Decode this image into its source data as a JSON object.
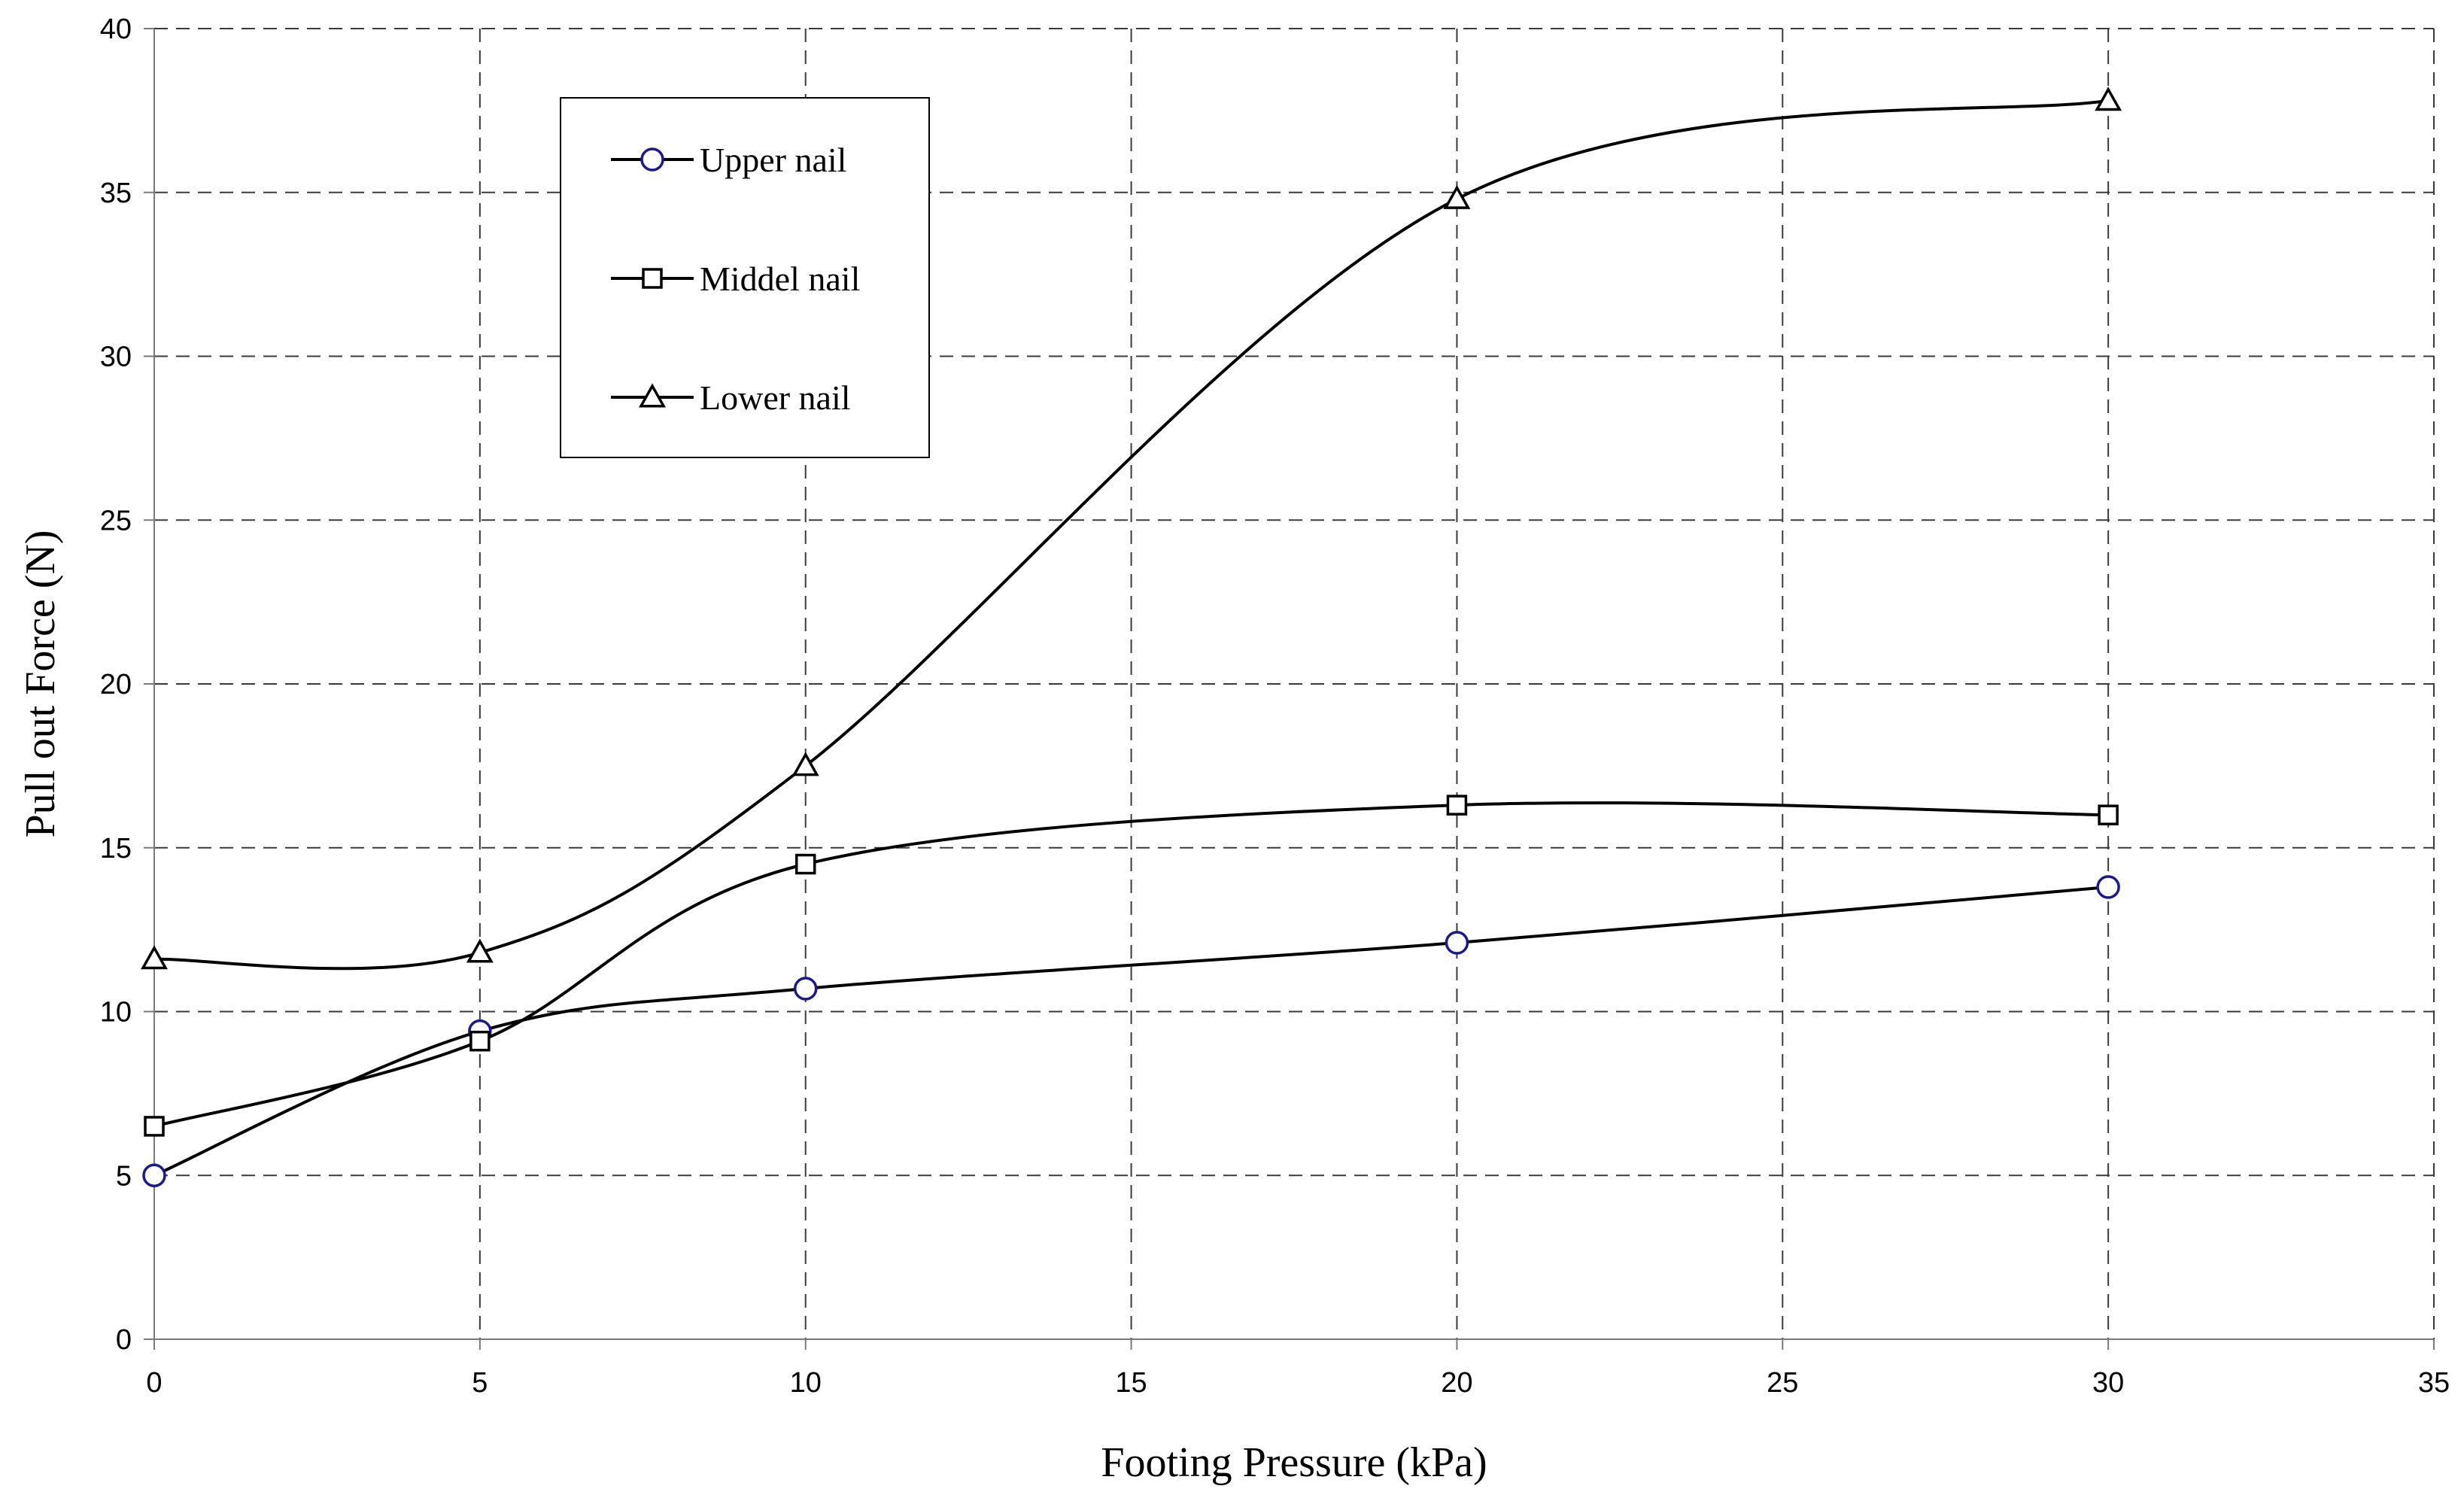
{
  "chart_data": {
    "type": "line",
    "title": "",
    "xlabel": "Footing Pressure (kPa)",
    "ylabel": "Pull out Force (N)",
    "xlim": [
      0,
      35
    ],
    "ylim": [
      0,
      40
    ],
    "xticks": [
      0,
      5,
      10,
      15,
      20,
      25,
      30,
      35
    ],
    "yticks": [
      0,
      5,
      10,
      15,
      20,
      25,
      30,
      35,
      40
    ],
    "grid": true,
    "smooth": true,
    "legend_position": "top-left",
    "series": [
      {
        "name": "Upper nail",
        "marker": "circle",
        "marker_color": "#1a1a8c",
        "x": [
          0,
          5,
          10,
          20,
          30
        ],
        "y": [
          5.0,
          9.4,
          10.7,
          12.1,
          13.8
        ]
      },
      {
        "name": "Middel nail",
        "marker": "square",
        "marker_color": "#000000",
        "x": [
          0,
          5,
          10,
          20,
          30
        ],
        "y": [
          6.5,
          9.1,
          14.5,
          16.3,
          16.0
        ]
      },
      {
        "name": "Lower nail",
        "marker": "triangle",
        "marker_color": "#000000",
        "x": [
          0,
          5,
          10,
          20,
          30
        ],
        "y": [
          11.6,
          11.8,
          17.5,
          34.8,
          37.8
        ]
      }
    ]
  }
}
